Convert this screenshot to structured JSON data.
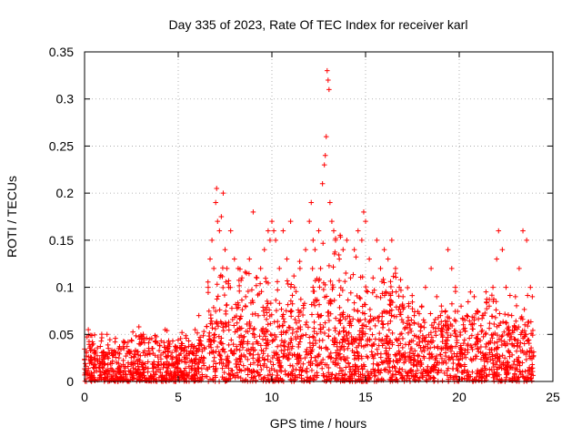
{
  "chart_data": {
    "type": "scatter",
    "title": "Day 335 of 2023, Rate Of TEC Index for receiver karl",
    "xlabel": "GPS time / hours",
    "ylabel": "ROTI / TECUs",
    "xlim": [
      0,
      25
    ],
    "ylim": [
      0,
      0.35
    ],
    "xticks": [
      0,
      5,
      10,
      15,
      20,
      25
    ],
    "yticks": [
      0,
      0.05,
      0.1,
      0.15,
      0.2,
      0.25,
      0.3,
      0.35
    ],
    "grid": true,
    "legend": "none",
    "marker": "+",
    "series_color": "#ff0000",
    "series": [
      {
        "x": [
          0.2,
          0.5,
          1.2,
          2.1,
          2.9,
          2.95,
          3.6,
          4.3,
          4.4,
          5.2,
          5.9,
          6.1,
          6.6,
          6.7,
          6.8,
          6.9,
          7.0,
          7.05,
          7.1,
          7.2,
          7.3,
          7.4,
          7.5,
          7.6,
          7.7,
          7.8,
          8.0,
          8.2,
          8.4,
          8.6,
          8.8,
          9.0,
          9.2,
          9.4,
          9.6,
          9.8,
          9.9,
          10.0,
          10.1,
          10.2,
          10.4,
          10.6,
          10.8,
          11.0,
          11.2,
          11.5,
          11.8,
          12.0,
          12.1,
          12.2,
          12.3,
          12.5,
          12.6,
          12.7,
          12.8,
          12.85,
          12.9,
          12.95,
          13.0,
          13.05,
          13.1,
          13.2,
          13.3,
          13.4,
          13.6,
          13.8,
          14.0,
          14.2,
          14.4,
          14.6,
          14.8,
          14.9,
          15.0,
          15.2,
          15.4,
          15.6,
          15.8,
          16.0,
          16.2,
          16.4,
          16.6,
          16.8,
          17.0,
          17.3,
          17.6,
          18.0,
          18.2,
          18.5,
          18.8,
          19.0,
          19.3,
          19.4,
          19.6,
          19.8,
          20.1,
          20.4,
          20.6,
          20.8,
          21.0,
          21.3,
          21.6,
          21.8,
          22.0,
          22.1,
          22.3,
          22.5,
          22.8,
          23.0,
          23.2,
          23.4,
          23.6,
          23.8,
          23.9
        ],
        "y": [
          0.055,
          0.03,
          0.05,
          0.035,
          0.058,
          0.045,
          0.035,
          0.055,
          0.054,
          0.052,
          0.055,
          0.07,
          0.1,
          0.13,
          0.15,
          0.12,
          0.19,
          0.205,
          0.17,
          0.16,
          0.175,
          0.2,
          0.14,
          0.12,
          0.1,
          0.16,
          0.13,
          0.12,
          0.11,
          0.09,
          0.13,
          0.18,
          0.11,
          0.12,
          0.14,
          0.16,
          0.15,
          0.17,
          0.16,
          0.15,
          0.12,
          0.16,
          0.13,
          0.17,
          0.1,
          0.12,
          0.14,
          0.17,
          0.19,
          0.15,
          0.14,
          0.16,
          0.12,
          0.21,
          0.23,
          0.24,
          0.26,
          0.33,
          0.32,
          0.31,
          0.19,
          0.17,
          0.16,
          0.15,
          0.13,
          0.14,
          0.15,
          0.11,
          0.14,
          0.16,
          0.15,
          0.18,
          0.17,
          0.13,
          0.11,
          0.15,
          0.12,
          0.14,
          0.13,
          0.15,
          0.12,
          0.1,
          0.09,
          0.08,
          0.07,
          0.08,
          0.1,
          0.12,
          0.09,
          0.07,
          0.06,
          0.14,
          0.12,
          0.1,
          0.08,
          0.07,
          0.095,
          0.09,
          0.05,
          0.07,
          0.08,
          0.1,
          0.13,
          0.16,
          0.14,
          0.1,
          0.07,
          0.09,
          0.12,
          0.16,
          0.15,
          0.1,
          0.09
        ]
      }
    ]
  }
}
